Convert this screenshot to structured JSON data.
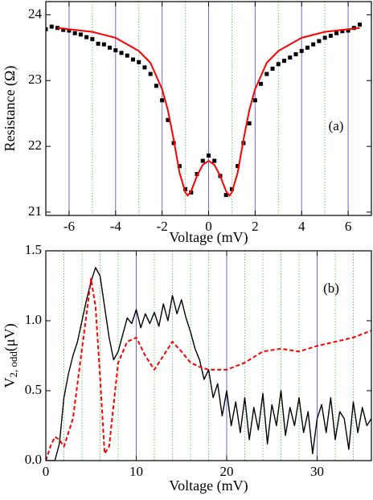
{
  "chart_data": [
    {
      "type": "line",
      "xlabel": "Voltage (mV)",
      "ylabel": "Resistance (Ω)",
      "annotation": "(a)",
      "xlim": [
        -7,
        7
      ],
      "ylim": [
        20.95,
        24.2
      ],
      "xticks": [
        -6,
        -4,
        -2,
        0,
        2,
        4,
        6
      ],
      "yticks": [
        21,
        22,
        23,
        24
      ],
      "xminor_grid": [
        -5,
        -3,
        -1,
        1,
        3,
        5
      ],
      "grid_color": "#6a6af0",
      "minor_grid_color": "#66cc66",
      "series": [
        {
          "color": "#000000",
          "style": "markers",
          "x": [
            -7,
            -6.75,
            -6.5,
            -6.25,
            -6,
            -5.75,
            -5.5,
            -5.25,
            -5,
            -4.75,
            -4.5,
            -4.25,
            -4,
            -3.75,
            -3.5,
            -3.25,
            -3,
            -2.75,
            -2.5,
            -2.25,
            -2,
            -1.75,
            -1.5,
            -1.25,
            -1,
            -0.75,
            -0.5,
            -0.25,
            0,
            0.25,
            0.5,
            0.75,
            1,
            1.25,
            1.5,
            1.75,
            2,
            2.25,
            2.5,
            2.75,
            3,
            3.25,
            3.5,
            3.75,
            4,
            4.25,
            4.5,
            4.75,
            5,
            5.25,
            5.5,
            5.75,
            6,
            6.25,
            6.5
          ],
          "values": [
            23.78,
            23.82,
            23.8,
            23.77,
            23.76,
            23.72,
            23.7,
            23.66,
            23.63,
            23.56,
            23.55,
            23.5,
            23.46,
            23.42,
            23.38,
            23.32,
            23.28,
            23.2,
            23.1,
            22.92,
            22.7,
            22.4,
            22.05,
            21.7,
            21.35,
            21.3,
            21.58,
            21.78,
            21.86,
            21.78,
            21.55,
            21.26,
            21.35,
            21.7,
            22.05,
            22.35,
            22.7,
            22.95,
            23.1,
            23.18,
            23.25,
            23.3,
            23.35,
            23.4,
            23.45,
            23.5,
            23.55,
            23.6,
            23.65,
            23.68,
            23.72,
            23.75,
            23.76,
            23.8,
            23.85
          ]
        },
        {
          "color": "#ff0000",
          "style": "line",
          "x": [
            -6.5,
            -6,
            -5,
            -4,
            -3,
            -2.5,
            -2,
            -1.75,
            -1.5,
            -1.25,
            -1,
            -0.9,
            -0.75,
            -0.5,
            -0.25,
            0,
            0.25,
            0.5,
            0.75,
            0.9,
            1,
            1.25,
            1.5,
            1.75,
            2,
            2.5,
            3,
            4,
            5,
            6,
            6.5
          ],
          "values": [
            23.8,
            23.78,
            23.74,
            23.65,
            23.45,
            23.27,
            22.87,
            22.55,
            22.1,
            21.6,
            21.3,
            21.25,
            21.32,
            21.55,
            21.72,
            21.78,
            21.72,
            21.55,
            21.32,
            21.25,
            21.3,
            21.6,
            22.1,
            22.55,
            22.87,
            23.27,
            23.45,
            23.65,
            23.74,
            23.78,
            23.8
          ]
        }
      ]
    },
    {
      "type": "line",
      "xlabel": "Voltage (mV)",
      "ylabel": {
        "main": "V",
        "sub": "2, odd",
        "unit": "(μV)"
      },
      "annotation": "(b)",
      "xlim": [
        0,
        36
      ],
      "ylim": [
        0,
        1.5
      ],
      "xticks": [
        0,
        10,
        20,
        30
      ],
      "yticks": [
        {
          "value": 0,
          "label": "0.0"
        },
        0.5,
        {
          "value": 1,
          "label": "1.0"
        },
        1.5
      ],
      "xminor_grid": [
        2,
        4,
        6,
        8,
        12,
        14,
        16,
        18,
        22,
        24,
        26,
        28,
        32,
        34
      ],
      "grid_color": "#6a6af0",
      "minor_grid_color": "#66cc66",
      "series": [
        {
          "color": "#000000",
          "style": "line",
          "x": [
            0,
            0.5,
            1,
            1.5,
            2,
            2.5,
            3,
            3.5,
            4,
            4.5,
            5,
            5.5,
            6,
            6.5,
            7,
            7.5,
            8,
            8.5,
            9,
            9.5,
            10,
            10.5,
            11,
            11.5,
            12,
            12.5,
            13,
            13.5,
            14,
            14.5,
            15,
            15.5,
            16,
            16.5,
            17,
            17.5,
            18,
            18.5,
            19,
            19.5,
            20,
            20.5,
            21,
            21.5,
            22,
            22.5,
            23,
            23.5,
            24,
            24.5,
            25,
            25.5,
            26,
            26.5,
            27,
            27.5,
            28,
            28.5,
            29,
            29.5,
            30,
            30.5,
            31,
            31.5,
            32,
            32.5,
            33,
            33.5,
            34,
            34.5,
            35,
            35.5,
            36
          ],
          "values": [
            0,
            0,
            0,
            0.12,
            0.45,
            0.62,
            0.75,
            0.85,
            1.0,
            1.15,
            1.28,
            1.38,
            1.32,
            1.1,
            0.88,
            0.72,
            0.78,
            0.9,
            1.02,
            0.98,
            1.08,
            0.95,
            1.05,
            0.98,
            1.06,
            0.96,
            1.12,
            1.0,
            1.18,
            1.05,
            1.15,
            1.02,
            0.92,
            0.8,
            0.72,
            0.58,
            0.65,
            0.45,
            0.55,
            0.32,
            0.5,
            0.25,
            0.42,
            0.2,
            0.45,
            0.15,
            0.38,
            0.22,
            0.48,
            0.12,
            0.4,
            0.25,
            0.5,
            0.18,
            0.38,
            0.25,
            0.45,
            0.2,
            0.35,
            0.05,
            0.3,
            0.4,
            0.2,
            0.45,
            0.15,
            0.35,
            0.3,
            0.08,
            0.42,
            0.2,
            0.38,
            0.25,
            0.3
          ]
        },
        {
          "color": "#ff0000",
          "style": "dashed",
          "x": [
            0,
            0.5,
            1,
            1.5,
            2,
            3,
            4,
            5,
            5.5,
            6,
            6.5,
            7,
            7.5,
            8,
            9,
            10,
            11,
            12,
            13,
            14,
            15,
            16,
            17,
            18,
            20,
            22,
            24,
            26,
            28,
            30,
            32,
            34,
            36
          ],
          "values": [
            0,
            0.1,
            0.17,
            0.15,
            0.1,
            0.3,
            0.8,
            1.3,
            1.1,
            0.6,
            0.05,
            0.1,
            0.4,
            0.7,
            0.85,
            0.88,
            0.75,
            0.65,
            0.75,
            0.85,
            0.78,
            0.7,
            0.67,
            0.65,
            0.65,
            0.7,
            0.78,
            0.8,
            0.78,
            0.82,
            0.85,
            0.88,
            0.93
          ]
        }
      ]
    }
  ]
}
